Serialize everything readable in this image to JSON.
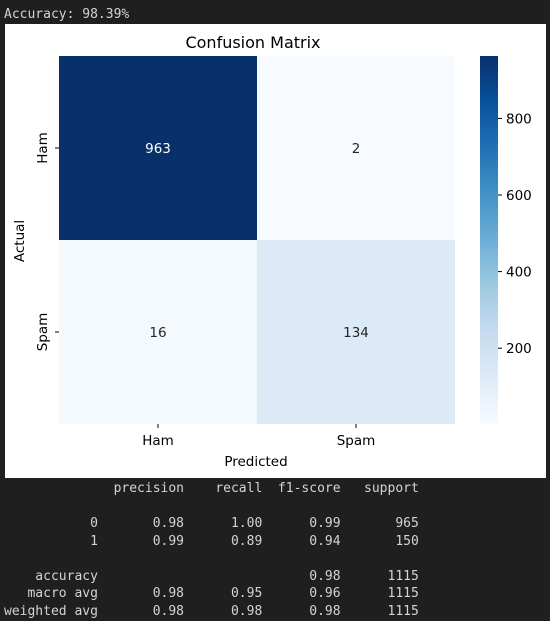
{
  "output": {
    "accuracy_line": "Accuracy: 98.39%"
  },
  "chart_data": {
    "type": "heatmap",
    "title": "Confusion Matrix",
    "xlabel": "Predicted",
    "ylabel": "Actual",
    "x_categories": [
      "Ham",
      "Spam"
    ],
    "y_categories": [
      "Ham",
      "Spam"
    ],
    "values": [
      [
        963,
        2
      ],
      [
        16,
        134
      ]
    ],
    "colormap": "Blues",
    "colorbar": {
      "ticks": [
        200,
        400,
        600,
        800
      ],
      "range": [
        2,
        963
      ]
    }
  },
  "report": {
    "rows": [
      "              precision    recall  f1-score   support",
      "",
      "           0       0.98      1.00      0.99       965",
      "           1       0.99      0.89      0.94       150",
      "",
      "    accuracy                           0.98      1115",
      "   macro avg       0.98      0.95      0.96      1115",
      "weighted avg       0.98      0.98      0.98      1115"
    ]
  }
}
